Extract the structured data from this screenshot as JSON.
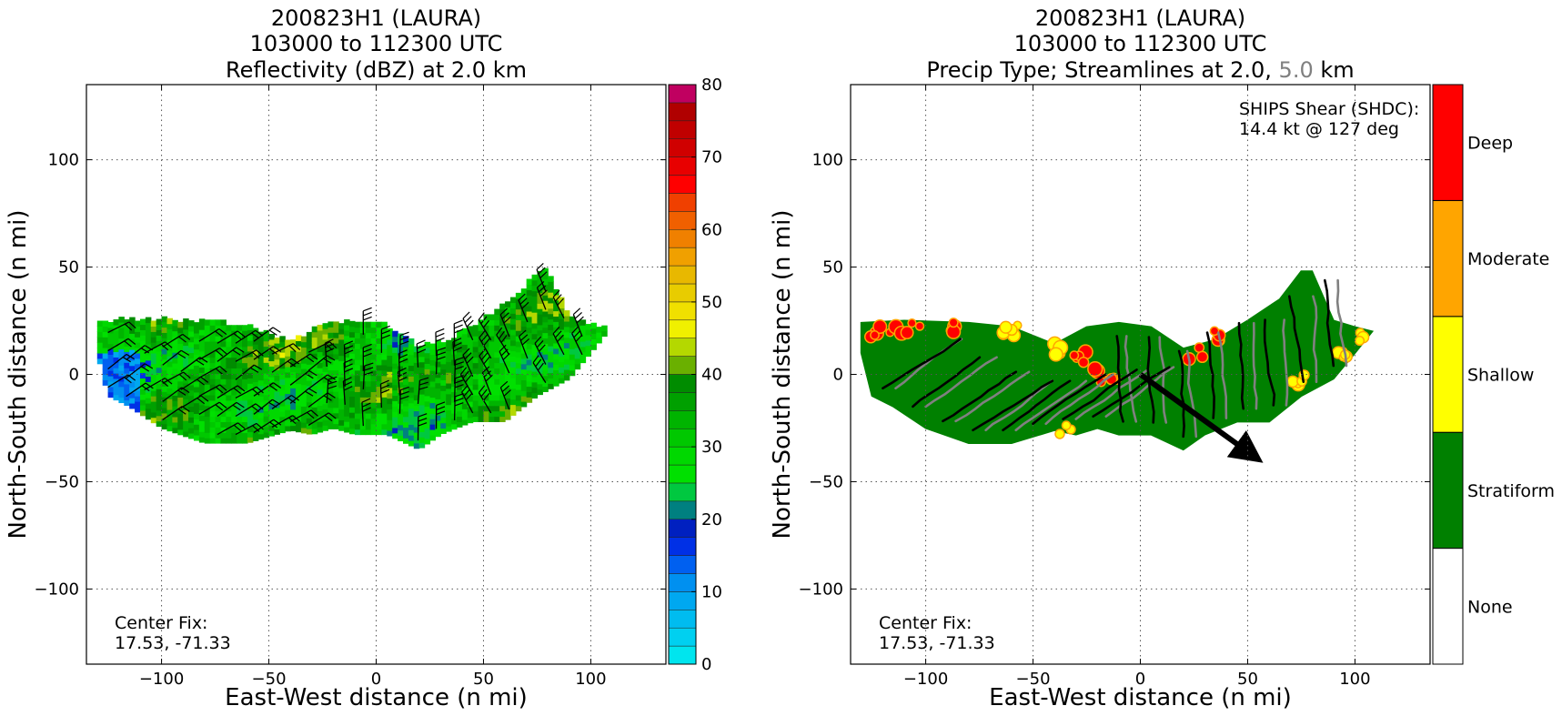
{
  "chart_data": [
    {
      "type": "heatmap",
      "title_lines": [
        "200823H1 (LAURA)",
        "103000 to 112300 UTC",
        "Reflectivity (dBZ) at 2.0 km"
      ],
      "xlabel": "East-West distance (n mi)",
      "ylabel": "North-South distance (n mi)",
      "xlim": [
        -135,
        135
      ],
      "ylim": [
        -135,
        135
      ],
      "xticks": [
        -100,
        -50,
        0,
        50,
        100
      ],
      "yticks": [
        -100,
        -50,
        0,
        50,
        100
      ],
      "xtick_labels": [
        "−100",
        "−50",
        "0",
        "50",
        "100"
      ],
      "ytick_labels": [
        "−100",
        "−50",
        "0",
        "50",
        "100"
      ],
      "grid": true,
      "annotation": [
        "Center Fix:",
        "17.53, -71.33"
      ],
      "colorbar": {
        "range": [
          0,
          80
        ],
        "step": 2.5,
        "ticks": [
          0,
          10,
          20,
          30,
          40,
          50,
          60,
          70,
          80
        ],
        "tick_labels": [
          "0",
          "10",
          "20",
          "30",
          "40",
          "50",
          "60",
          "70",
          "80"
        ],
        "colors": [
          "#00e5ee",
          "#00d0f0",
          "#00bcf0",
          "#00a8f0",
          "#0090f0",
          "#0060f0",
          "#0030e6",
          "#0020c0",
          "#008080",
          "#00c840",
          "#00e000",
          "#00d800",
          "#00c800",
          "#00b400",
          "#00a000",
          "#008c00",
          "#6ab000",
          "#b4d800",
          "#f0f000",
          "#f0e000",
          "#e8cc00",
          "#e8b800",
          "#f0a000",
          "#f08000",
          "#f06000",
          "#f04000",
          "#ff0000",
          "#e80000",
          "#d00000",
          "#c00000",
          "#b00000",
          "#c00060",
          "#e000a0",
          "#f000e0",
          "#d030e0",
          "#a050d0",
          "#7040a0",
          "#402050"
        ]
      },
      "reflectivity_echo": {
        "x_range": [
          -130,
          108
        ],
        "top_y": [
          [
            -130,
            24
          ],
          [
            -110,
            25
          ],
          [
            -80,
            24
          ],
          [
            -60,
            22
          ],
          [
            -40,
            14
          ],
          [
            -25,
            22
          ],
          [
            -10,
            24
          ],
          [
            5,
            22
          ],
          [
            20,
            12
          ],
          [
            35,
            16
          ],
          [
            50,
            25
          ],
          [
            65,
            35
          ],
          [
            75,
            48
          ],
          [
            80,
            48
          ],
          [
            90,
            25
          ],
          [
            100,
            22
          ],
          [
            108,
            20
          ]
        ],
        "bottom_y": [
          [
            -130,
            10
          ],
          [
            -125,
            -10
          ],
          [
            -115,
            -15
          ],
          [
            -100,
            -25
          ],
          [
            -80,
            -32
          ],
          [
            -60,
            -32
          ],
          [
            -40,
            -26
          ],
          [
            -30,
            -28
          ],
          [
            -20,
            -25
          ],
          [
            -10,
            -28
          ],
          [
            5,
            -28
          ],
          [
            20,
            -35
          ],
          [
            30,
            -28
          ],
          [
            45,
            -22
          ],
          [
            60,
            -22
          ],
          [
            75,
            -10
          ],
          [
            90,
            -2
          ],
          [
            100,
            10
          ],
          [
            108,
            20
          ]
        ]
      },
      "wind_barbs": {
        "spacing": 8.5,
        "region_x": [
          -125,
          100
        ]
      }
    },
    {
      "type": "heatmap",
      "title_lines": [
        "200823H1 (LAURA)",
        "103000 to 112300 UTC",
        "Precip Type; Streamlines at 2.0, 5.0 km"
      ],
      "title_line3_parts": [
        {
          "text": "Precip Type; Streamlines at 2.0, ",
          "color": "#000000"
        },
        {
          "text": "5.0",
          "color": "#808080"
        },
        {
          "text": " km",
          "color": "#000000"
        }
      ],
      "xlabel": "East-West distance (n mi)",
      "ylabel": "North-South distance (n mi)",
      "xlim": [
        -135,
        135
      ],
      "ylim": [
        -135,
        135
      ],
      "xticks": [
        -100,
        -50,
        0,
        50,
        100
      ],
      "yticks": [
        -100,
        -50,
        0,
        50,
        100
      ],
      "xtick_labels": [
        "−100",
        "−50",
        "0",
        "50",
        "100"
      ],
      "ytick_labels": [
        "−100",
        "−50",
        "0",
        "50",
        "100"
      ],
      "grid": true,
      "annotation": [
        "Center Fix:",
        "17.53, -71.33"
      ],
      "shear_annotation": [
        "SHIPS Shear (SHDC):",
        "14.4 kt @ 127 deg"
      ],
      "shear_vector": {
        "from": [
          0,
          0
        ],
        "to": [
          50,
          -36
        ],
        "magnitude_kt": 14.4,
        "direction_deg": 127
      },
      "colorbar": {
        "categories": [
          "None",
          "Stratiform",
          "Shallow",
          "Moderate",
          "Deep"
        ],
        "colors": [
          "#ffffff",
          "#008000",
          "#ffff00",
          "#ffa500",
          "#ff0000"
        ]
      },
      "precip_type_dominant": "Stratiform",
      "convective_cells": [
        {
          "x": -125,
          "y": 20,
          "type": "Deep"
        },
        {
          "x": -115,
          "y": 22,
          "type": "Deep"
        },
        {
          "x": -105,
          "y": 22,
          "type": "Deep"
        },
        {
          "x": -85,
          "y": 22,
          "type": "Deep"
        },
        {
          "x": -60,
          "y": 20,
          "type": "Shallow"
        },
        {
          "x": -40,
          "y": 12,
          "type": "Shallow"
        },
        {
          "x": -28,
          "y": 8,
          "type": "Deep"
        },
        {
          "x": -20,
          "y": 0,
          "type": "Deep"
        },
        {
          "x": -15,
          "y": -4,
          "type": "Deep"
        },
        {
          "x": -35,
          "y": -25,
          "type": "Shallow"
        },
        {
          "x": 25,
          "y": 10,
          "type": "Deep"
        },
        {
          "x": 35,
          "y": 18,
          "type": "Deep"
        },
        {
          "x": 75,
          "y": -2,
          "type": "Shallow"
        },
        {
          "x": 95,
          "y": 8,
          "type": "Shallow"
        },
        {
          "x": 100,
          "y": 18,
          "type": "Shallow"
        }
      ],
      "streamlines_2km_color": "#000000",
      "streamlines_5km_color": "#808080"
    }
  ]
}
